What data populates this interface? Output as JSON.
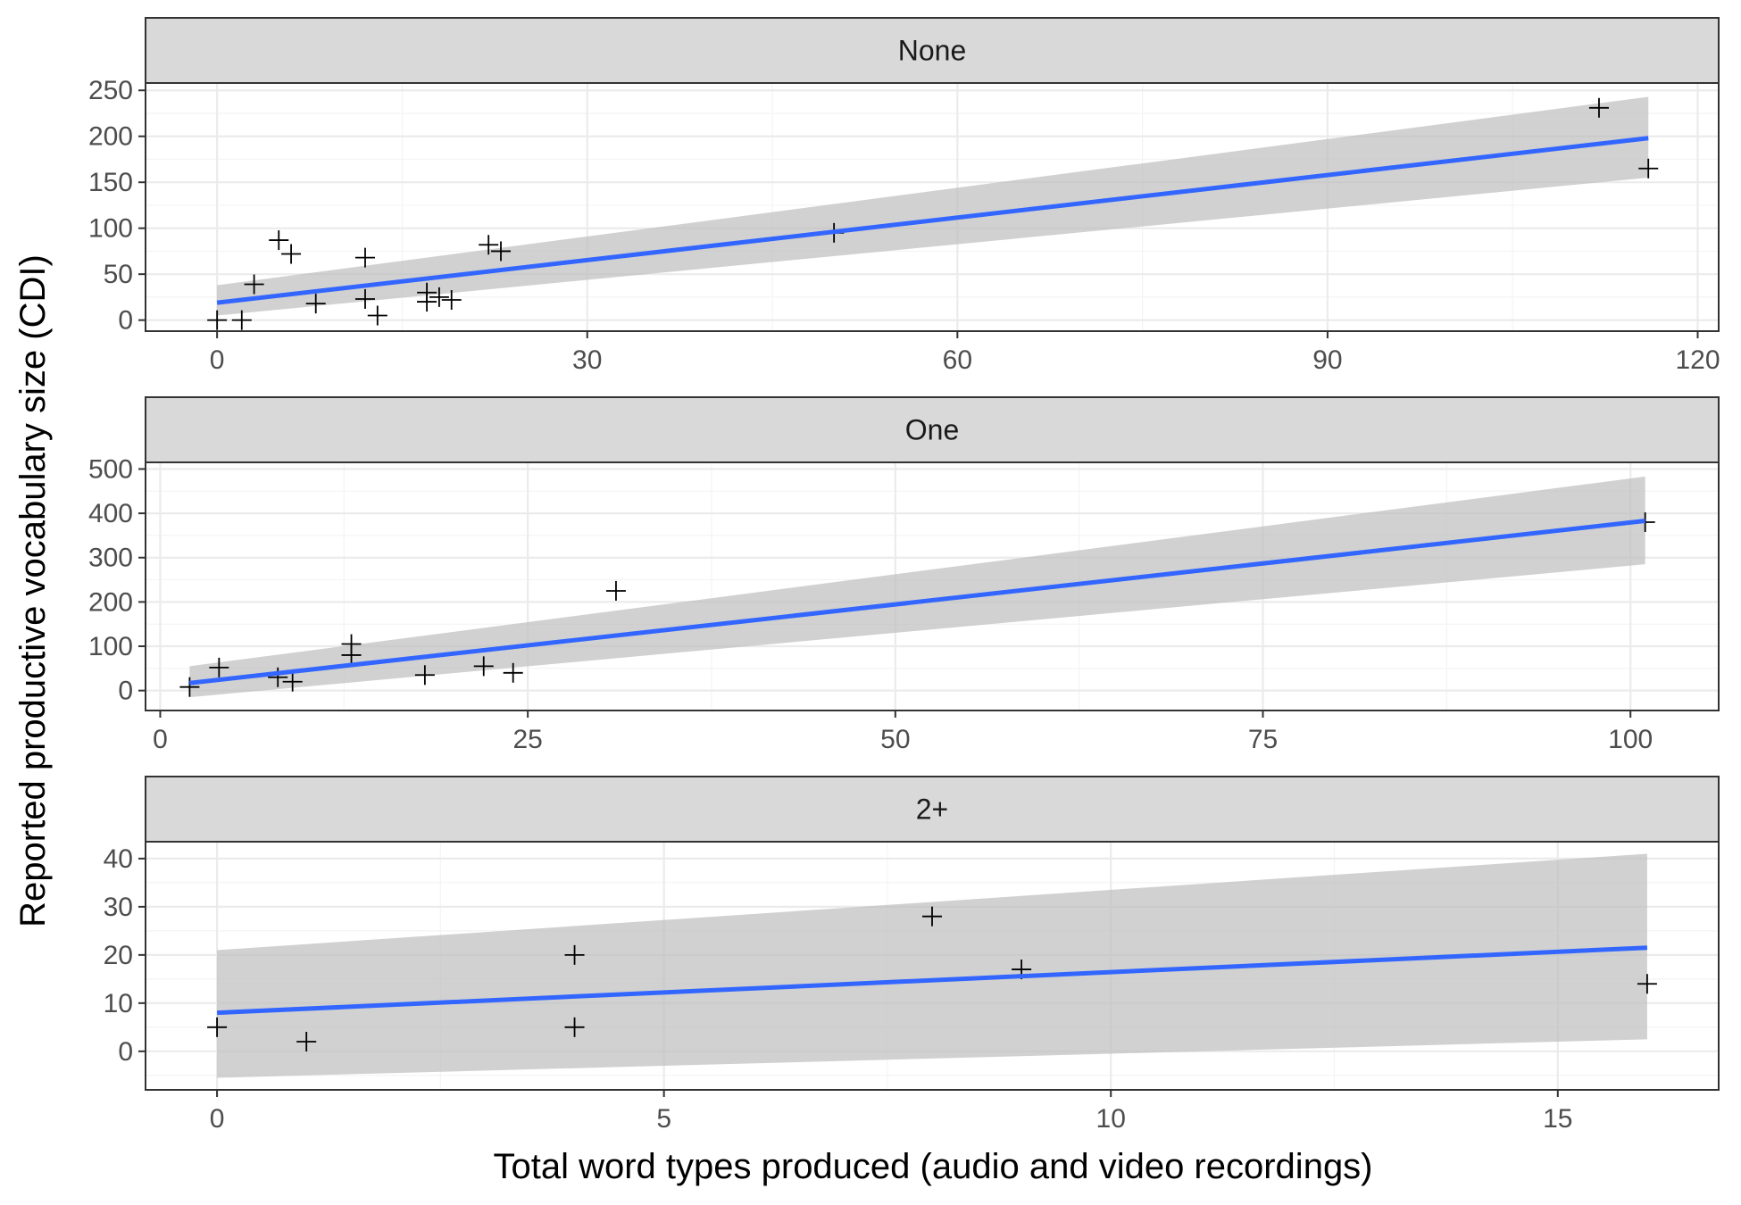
{
  "chart_data": {
    "type": "scatter",
    "xlabel": "Total word types produced (audio and video recordings)",
    "ylabel": "Reported productive vocabulary size (CDI)",
    "colors": {
      "fit_line": "#3366ff",
      "confidence_band": "#bebebe",
      "strip_fill": "#d9d9d9",
      "panel_border": "#333333",
      "grid_major": "#ebebeb",
      "points": "#000000"
    },
    "point_shape": "plus",
    "smooth": "linear fit with confidence band",
    "panels": [
      {
        "label": "None",
        "xlim": [
          -5.8,
          121.7
        ],
        "ylim": [
          -12,
          258
        ],
        "x_ticks": [
          0,
          30,
          60,
          90,
          120
        ],
        "y_ticks": [
          0,
          50,
          100,
          150,
          200,
          250
        ],
        "points": [
          [
            0,
            0
          ],
          [
            2,
            0
          ],
          [
            3,
            39
          ],
          [
            5,
            87
          ],
          [
            6,
            72
          ],
          [
            8,
            18
          ],
          [
            12,
            68
          ],
          [
            12,
            23
          ],
          [
            13,
            5
          ],
          [
            17,
            20
          ],
          [
            17,
            30
          ],
          [
            18,
            25
          ],
          [
            19,
            22
          ],
          [
            22,
            82
          ],
          [
            23,
            75
          ],
          [
            50,
            95
          ],
          [
            112,
            231
          ],
          [
            116,
            165
          ]
        ],
        "fit": {
          "x": [
            0,
            116
          ],
          "y": [
            19,
            198
          ],
          "band_lo": [
            5,
            155
          ],
          "band_hi": [
            38,
            243
          ]
        }
      },
      {
        "label": "One",
        "xlim": [
          -1,
          106
        ],
        "ylim": [
          -45,
          515
        ],
        "x_ticks": [
          0,
          25,
          50,
          75,
          100
        ],
        "y_ticks": [
          0,
          100,
          200,
          300,
          400,
          500
        ],
        "points": [
          [
            2,
            8
          ],
          [
            4,
            52
          ],
          [
            8,
            30
          ],
          [
            9,
            20
          ],
          [
            13,
            105
          ],
          [
            13,
            80
          ],
          [
            18,
            35
          ],
          [
            22,
            55
          ],
          [
            24,
            40
          ],
          [
            31,
            225
          ],
          [
            101,
            380
          ]
        ],
        "fit": {
          "x": [
            2,
            101
          ],
          "y": [
            17,
            383
          ],
          "band_lo": [
            -15,
            285
          ],
          "band_hi": [
            55,
            483
          ]
        }
      },
      {
        "label": "2+",
        "xlim": [
          -0.8,
          16.8
        ],
        "ylim": [
          -8,
          43.5
        ],
        "x_ticks": [
          0,
          5,
          10,
          15
        ],
        "y_ticks": [
          0,
          10,
          20,
          30,
          40
        ],
        "points": [
          [
            0,
            5
          ],
          [
            1,
            2
          ],
          [
            4,
            20
          ],
          [
            4,
            5
          ],
          [
            8,
            28
          ],
          [
            9,
            17
          ],
          [
            16,
            14
          ]
        ],
        "fit": {
          "x": [
            0,
            16
          ],
          "y": [
            8,
            21.5
          ],
          "band_lo": [
            -5.5,
            2.5
          ],
          "band_hi": [
            21,
            41
          ]
        }
      }
    ]
  }
}
